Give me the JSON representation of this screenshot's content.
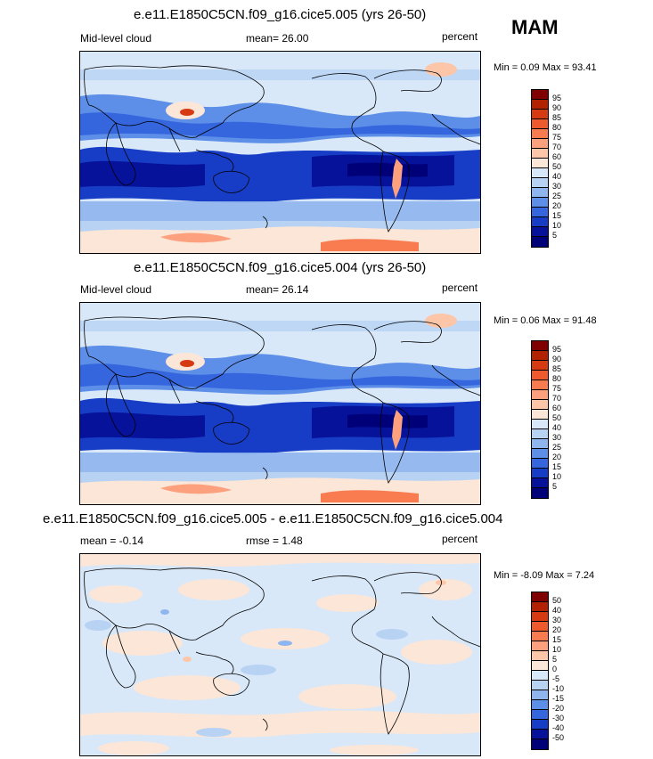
{
  "season": "MAM",
  "panels": [
    {
      "title": "e.e11.E1850C5CN.f09_g16.cice5.005 (yrs 26-50)",
      "left_label": "Mid-level cloud",
      "center_label": "mean=  26.00",
      "right_label": "percent",
      "minmax": "Min =   0.09 Max =  93.41",
      "palette": "abs"
    },
    {
      "title": "e.e11.E1850C5CN.f09_g16.cice5.004 (yrs 26-50)",
      "left_label": "Mid-level cloud",
      "center_label": "mean=  26.14",
      "right_label": "percent",
      "minmax": "Min =   0.06 Max =  91.48",
      "palette": "abs"
    },
    {
      "title": "e.e11.E1850C5CN.f09_g16.cice5.005 - e.e11.E1850C5CN.f09_g16.cice5.004",
      "left_label": "mean =  -0.14",
      "center_label": "rmse =    1.48",
      "right_label": "percent",
      "minmax": "Min =  -8.09 Max =   7.24",
      "palette": "diff"
    }
  ],
  "colorbars": {
    "abs": {
      "labels": [
        "95",
        "90",
        "85",
        "80",
        "75",
        "70",
        "60",
        "50",
        "40",
        "30",
        "25",
        "20",
        "15",
        "10",
        "5"
      ],
      "colors": [
        "#800000",
        "#b22200",
        "#d63a12",
        "#ee5a2e",
        "#f97b50",
        "#fca07d",
        "#fdc6a8",
        "#fbe6d8",
        "#d8e8f8",
        "#b8d2f4",
        "#8fb5ee",
        "#5d8ee8",
        "#3566de",
        "#173dc6",
        "#06129a",
        "#000078"
      ]
    },
    "diff": {
      "labels": [
        "50",
        "40",
        "30",
        "20",
        "15",
        "10",
        "5",
        "0",
        "-5",
        "-10",
        "-15",
        "-20",
        "-30",
        "-40",
        "-50"
      ],
      "colors": [
        "#800000",
        "#b22200",
        "#d63a12",
        "#ee5a2e",
        "#f97b50",
        "#fca07d",
        "#fdc6a8",
        "#fbe6d8",
        "#d8e8f8",
        "#b8d2f4",
        "#8fb5ee",
        "#5d8ee8",
        "#3566de",
        "#173dc6",
        "#06129a",
        "#000078"
      ]
    }
  }
}
